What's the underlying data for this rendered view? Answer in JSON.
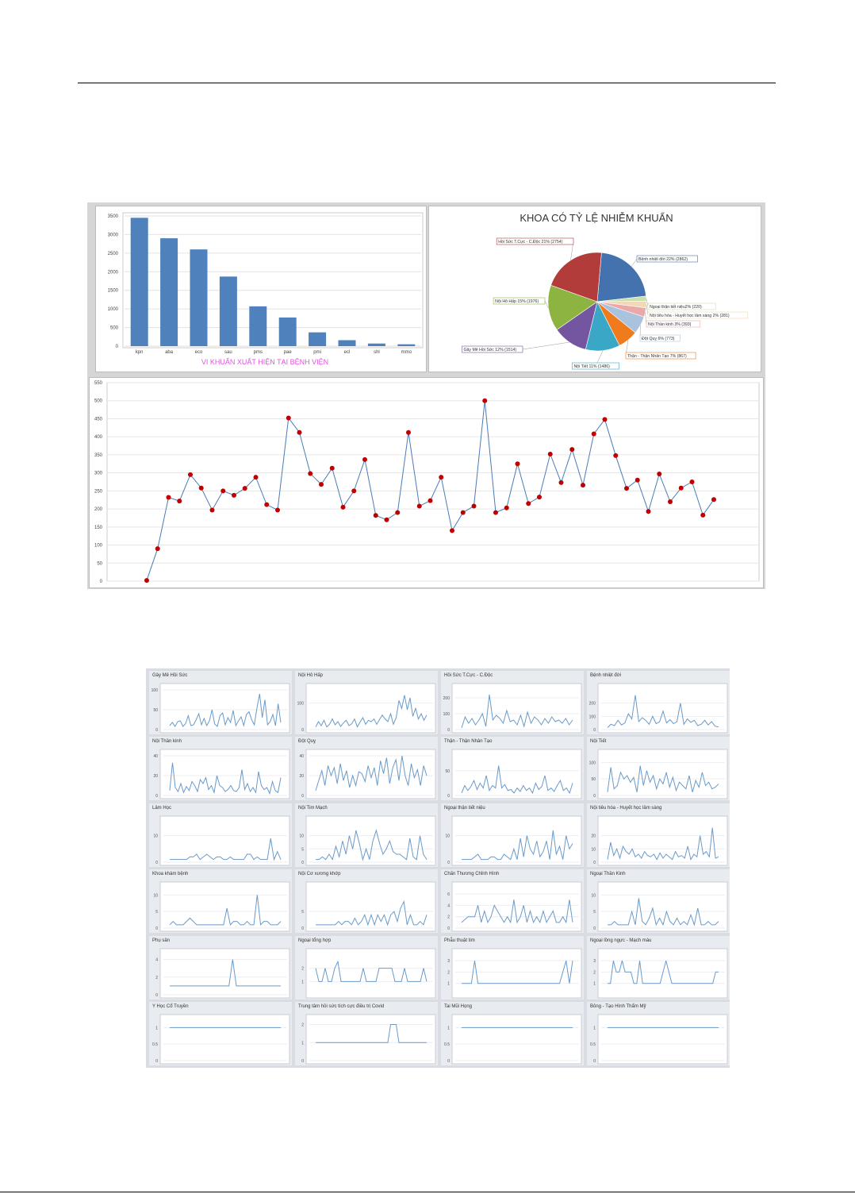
{
  "charts": [
    {
      "type": "bar",
      "categories": [
        "kpn",
        "aba",
        "eco",
        "sau",
        "pms",
        "pae",
        "pmi",
        "ecl",
        "shl",
        "mmo"
      ],
      "values": [
        3450,
        2900,
        2600,
        1870,
        1070,
        770,
        370,
        160,
        70,
        50
      ],
      "xlabel": "VI KHUẨN XUẤT HIỆN TẠI BỆNH VIỆN",
      "ylim": [
        0,
        3500
      ],
      "yticks": [
        0,
        500,
        1000,
        1500,
        2000,
        2500,
        3000,
        3500
      ],
      "grid": true,
      "colors": {
        "bar": "#4f81bd",
        "xlabel": "#dd55dd"
      }
    },
    {
      "type": "pie",
      "title": "KHOA CÓ TỶ LỆ NHIỄM KHUẨN",
      "slices": [
        {
          "label": "Bệnh nhiệt đới 22% (2862)",
          "value": 2862,
          "color": "#4472ae"
        },
        {
          "label": "Ngoại thận tiết niệu2% (220)",
          "value": 220,
          "color": "#c8e0b0"
        },
        {
          "label": "Nội tiêu hóa - Huyết học lâm sàng 2% (281)",
          "value": 281,
          "color": "#f0d8b8"
        },
        {
          "label": "Nội Thần kinh 3% (393)",
          "value": 393,
          "color": "#eaa8a8"
        },
        {
          "label": "Đột Quỵ 6% (773)",
          "value": 773,
          "color": "#a9c3de"
        },
        {
          "label": "Thận - Thận Nhân Tạo 7% (867)",
          "value": 867,
          "color": "#f07b1c"
        },
        {
          "label": "Nội Tiết 11% (1486)",
          "value": 1486,
          "color": "#3ba7c7"
        },
        {
          "label": "Gây Mê Hồi Sức 12% (1514)",
          "value": 1514,
          "color": "#7456a0"
        },
        {
          "label": "Nội Hô Hấp 15% (1976)",
          "value": 1976,
          "color": "#8db441"
        },
        {
          "label": "Hồi Sức T.Cực - C.Độc 21% (2754)",
          "value": 2754,
          "color": "#b13c3a"
        }
      ]
    },
    {
      "type": "line",
      "ylim": [
        0,
        550
      ],
      "yticks": [
        0,
        50,
        100,
        150,
        200,
        250,
        300,
        350,
        400,
        450,
        500,
        550
      ],
      "grid": true,
      "colors": {
        "line": "#4a7bb7",
        "marker": "#c00000"
      },
      "values": [
        2,
        90,
        232,
        222,
        295,
        258,
        197,
        250,
        238,
        257,
        288,
        212,
        197,
        452,
        412,
        298,
        268,
        313,
        205,
        250,
        337,
        182,
        170,
        190,
        412,
        208,
        223,
        288,
        140,
        190,
        208,
        500,
        190,
        203,
        325,
        215,
        233,
        352,
        273,
        365,
        266,
        408,
        448,
        348,
        257,
        280,
        193,
        297,
        220,
        258,
        275,
        183,
        226
      ]
    }
  ],
  "small_multiples": [
    {
      "title": "Gây Mê Hồi Sức",
      "ylim": [
        0,
        100
      ],
      "yticks": [
        0,
        50,
        100
      ],
      "values": [
        10,
        18,
        8,
        20,
        22,
        8,
        15,
        35,
        10,
        12,
        25,
        40,
        12,
        28,
        10,
        22,
        50,
        14,
        8,
        35,
        42,
        12,
        30,
        18,
        48,
        10,
        22,
        32,
        10,
        38,
        45,
        25,
        12,
        55,
        90,
        30,
        75,
        12,
        20,
        38,
        10,
        65,
        18
      ]
    },
    {
      "title": "Nội Hô Hấp",
      "ylim": [
        0,
        150
      ],
      "yticks": [
        0,
        100
      ],
      "values": [
        10,
        30,
        15,
        35,
        10,
        20,
        40,
        18,
        30,
        12,
        25,
        35,
        15,
        22,
        40,
        10,
        28,
        45,
        20,
        35,
        30,
        40,
        20,
        38,
        55,
        40,
        30,
        60,
        20,
        45,
        110,
        80,
        130,
        75,
        120,
        50,
        80,
        40,
        60,
        35,
        55
      ]
    },
    {
      "title": "Hồi Sức T.Cực - C.Độc",
      "ylim": [
        0,
        250
      ],
      "yticks": [
        0,
        100,
        200
      ],
      "values": [
        10,
        80,
        40,
        70,
        30,
        60,
        100,
        20,
        220,
        60,
        90,
        70,
        40,
        120,
        50,
        60,
        30,
        90,
        20,
        110,
        40,
        80,
        60,
        30,
        70,
        40,
        80,
        50,
        60,
        40,
        70,
        30,
        60
      ]
    },
    {
      "title": "Bệnh nhiệt đới",
      "ylim": [
        0,
        300
      ],
      "yticks": [
        0,
        100,
        200
      ],
      "values": [
        15,
        40,
        30,
        70,
        35,
        50,
        120,
        80,
        260,
        60,
        90,
        70,
        40,
        100,
        45,
        60,
        140,
        50,
        75,
        45,
        60,
        200,
        40,
        80,
        55,
        70,
        30,
        40,
        70,
        35,
        60,
        25,
        20
      ]
    },
    {
      "title": "Nội Thần kinh",
      "ylim": [
        0,
        40
      ],
      "yticks": [
        0,
        20,
        40
      ],
      "values": [
        5,
        33,
        8,
        4,
        12,
        3,
        9,
        5,
        14,
        10,
        4,
        16,
        12,
        18,
        6,
        10,
        3,
        20,
        10,
        8,
        4,
        6,
        10,
        5,
        4,
        8,
        26,
        6,
        12,
        4,
        8,
        3,
        24,
        10,
        6,
        8,
        2,
        14,
        5,
        3,
        18
      ]
    },
    {
      "title": "Đột Quỵ",
      "ylim": [
        0,
        40
      ],
      "yticks": [
        0,
        20,
        40
      ],
      "values": [
        5,
        15,
        25,
        10,
        30,
        20,
        28,
        12,
        32,
        15,
        25,
        8,
        20,
        10,
        24,
        22,
        14,
        30,
        18,
        28,
        10,
        35,
        22,
        38,
        12,
        28,
        36,
        15,
        40,
        20,
        10,
        32,
        18,
        26,
        10,
        30,
        20
      ]
    },
    {
      "title": "Thận - Thận Nhân Tạo",
      "ylim": [
        0,
        80
      ],
      "yticks": [
        0,
        50
      ],
      "values": [
        5,
        20,
        10,
        18,
        30,
        12,
        25,
        15,
        40,
        10,
        20,
        15,
        60,
        15,
        22,
        10,
        12,
        5,
        15,
        8,
        20,
        10,
        15,
        5,
        25,
        12,
        18,
        40,
        10,
        15,
        8,
        20,
        30,
        10,
        15,
        5,
        25
      ]
    },
    {
      "title": "Nội Tiết",
      "ylim": [
        0,
        120
      ],
      "yticks": [
        0,
        50,
        100
      ],
      "values": [
        10,
        85,
        20,
        30,
        70,
        50,
        60,
        40,
        55,
        10,
        90,
        30,
        75,
        40,
        60,
        20,
        50,
        35,
        70,
        25,
        55,
        15,
        40,
        30,
        20,
        60,
        10,
        45,
        25,
        70,
        30,
        40,
        20,
        25,
        35
      ]
    },
    {
      "title": "Lâm Học",
      "ylim": [
        0,
        15
      ],
      "yticks": [
        0,
        10
      ],
      "values": [
        1,
        1,
        1,
        1,
        1,
        1,
        2,
        2,
        3,
        1,
        2,
        3,
        2,
        1,
        2,
        2,
        1,
        1,
        2,
        1,
        1,
        1,
        1,
        3,
        3,
        1,
        2,
        1,
        1,
        1,
        9,
        1,
        4,
        1
      ]
    },
    {
      "title": "Nội Tim Mạch",
      "ylim": [
        0,
        15
      ],
      "yticks": [
        0,
        5,
        10
      ],
      "values": [
        1,
        1,
        2,
        1,
        3,
        1,
        6,
        2,
        8,
        3,
        10,
        5,
        12,
        7,
        1,
        5,
        1,
        8,
        12,
        7,
        3,
        5,
        8,
        4,
        3,
        3,
        2,
        1,
        9,
        2,
        1,
        10,
        3,
        1
      ]
    },
    {
      "title": "Ngoại thận tiết niệu",
      "ylim": [
        0,
        15
      ],
      "yticks": [
        0,
        10
      ],
      "values": [
        1,
        1,
        1,
        1,
        2,
        3,
        1,
        1,
        1,
        2,
        2,
        1,
        1,
        3,
        2,
        1,
        5,
        1,
        9,
        2,
        10,
        5,
        3,
        8,
        2,
        4,
        8,
        1,
        12,
        3,
        6,
        1,
        10,
        5,
        7
      ]
    },
    {
      "title": "Nội tiêu hóa - Huyết học lâm sàng",
      "ylim": [
        0,
        30
      ],
      "yticks": [
        0,
        10,
        20
      ],
      "values": [
        2,
        15,
        5,
        10,
        3,
        12,
        8,
        6,
        10,
        4,
        6,
        3,
        8,
        5,
        4,
        6,
        2,
        7,
        3,
        6,
        4,
        2,
        8,
        4,
        5,
        3,
        12,
        2,
        6,
        4,
        20,
        6,
        8,
        4,
        26,
        3,
        4
      ]
    },
    {
      "title": "Khoa khám bệnh",
      "ylim": [
        0,
        12
      ],
      "yticks": [
        0,
        5,
        10
      ],
      "values": [
        1,
        2,
        1,
        1,
        1,
        2,
        3,
        2,
        1,
        1,
        1,
        1,
        1,
        1,
        1,
        1,
        1,
        6,
        1,
        2,
        2,
        1,
        1,
        2,
        1,
        1,
        10,
        1,
        2,
        2,
        1,
        1,
        1,
        2
      ]
    },
    {
      "title": "Nội Cơ xương khớp",
      "ylim": [
        0,
        12
      ],
      "yticks": [
        0,
        5
      ],
      "values": [
        1,
        1,
        1,
        1,
        1,
        1,
        1,
        2,
        1,
        2,
        2,
        1,
        3,
        1,
        2,
        4,
        1,
        4,
        1,
        4,
        2,
        4,
        1,
        4,
        5,
        2,
        6,
        8,
        1,
        4,
        1,
        1,
        2,
        1,
        4
      ]
    },
    {
      "title": "Chấn Thương Chỉnh Hình",
      "ylim": [
        0,
        7
      ],
      "yticks": [
        0,
        2,
        4,
        6
      ],
      "values": [
        1,
        1.5,
        2,
        2,
        2,
        4,
        1,
        3,
        1,
        2,
        4,
        3,
        2,
        1,
        2,
        1,
        5,
        1,
        2,
        4,
        1,
        3,
        1,
        2,
        1,
        3,
        1,
        2,
        3,
        1,
        1,
        2,
        1,
        5,
        1
      ]
    },
    {
      "title": "Ngoại Thần Kinh",
      "ylim": [
        0,
        12
      ],
      "yticks": [
        0,
        5,
        10
      ],
      "values": [
        1,
        1,
        2,
        1,
        1,
        1,
        1,
        5,
        1,
        9,
        2,
        1,
        3,
        6,
        1,
        3,
        1,
        5,
        2,
        1,
        3,
        1,
        2,
        1,
        4,
        1,
        6,
        1,
        1,
        2,
        1,
        1,
        2
      ]
    },
    {
      "title": "Phụ sản",
      "ylim": [
        0,
        4.5
      ],
      "yticks": [
        0,
        2,
        4
      ],
      "values": [
        1,
        1,
        1,
        1,
        1,
        1,
        1,
        1,
        1,
        1,
        1,
        1,
        1,
        1,
        1,
        1,
        1,
        4,
        1,
        1,
        1,
        1,
        1,
        1,
        1,
        1,
        1,
        1,
        1,
        1,
        1
      ]
    },
    {
      "title": "Ngoại tổng hợp",
      "ylim": [
        0,
        3
      ],
      "yticks": [
        1,
        2
      ],
      "values": [
        2,
        1,
        1,
        2,
        1,
        1,
        2,
        2.5,
        1,
        1,
        1,
        1,
        1,
        1,
        1,
        2,
        1,
        1,
        1,
        1,
        2,
        2,
        2,
        2,
        2,
        1,
        1,
        1,
        2,
        1,
        1,
        1,
        1,
        1,
        2,
        1
      ]
    },
    {
      "title": "Phẫu thuật tim",
      "ylim": [
        0,
        3.5
      ],
      "yticks": [
        1,
        2,
        3
      ],
      "values": [
        1,
        1,
        1,
        1,
        3,
        1,
        1,
        1,
        1,
        1,
        1,
        1,
        1,
        1,
        1,
        1,
        1,
        1,
        1,
        1,
        1,
        1,
        1,
        1,
        1,
        1,
        1,
        1,
        1,
        1,
        1,
        2,
        3,
        1,
        3
      ]
    },
    {
      "title": "Ngoại lồng ngực - Mạch máu",
      "ylim": [
        0,
        3.5
      ],
      "yticks": [
        1,
        2,
        3
      ],
      "values": [
        1,
        1,
        3,
        2,
        2,
        3,
        2,
        2,
        2,
        1,
        1,
        3,
        1,
        1,
        1,
        1,
        1,
        1,
        1,
        2,
        3,
        2,
        1,
        1,
        1,
        1,
        1,
        1,
        1,
        1,
        1,
        1,
        1,
        1,
        1,
        1,
        1,
        2,
        2
      ]
    },
    {
      "title": "Y Học Cổ Truyền",
      "ylim": [
        0,
        1.2
      ],
      "yticks": [
        0,
        0.5,
        1
      ],
      "values": [
        1,
        1,
        1,
        1,
        1,
        1,
        1,
        1,
        1,
        1,
        1,
        1,
        1,
        1,
        1,
        1,
        1,
        1,
        1,
        1,
        1,
        1,
        1,
        1,
        1,
        1,
        1,
        1,
        1,
        1,
        1,
        1,
        1,
        1,
        1,
        1,
        1,
        1,
        1,
        1,
        1,
        1,
        1,
        1,
        1
      ]
    },
    {
      "title": "Trung tâm hồi sức tích cực điều trị Covid",
      "ylim": [
        0,
        2.2
      ],
      "yticks": [
        0,
        1,
        2
      ],
      "values": [
        1,
        1,
        1,
        1,
        1,
        1,
        1,
        1,
        1,
        1,
        1,
        1,
        1,
        1,
        1,
        1,
        1,
        1,
        1,
        1,
        1,
        1,
        1,
        1,
        1,
        1,
        1,
        2,
        2,
        2,
        1,
        1,
        1,
        1,
        1,
        1,
        1,
        1,
        1,
        1,
        1
      ]
    },
    {
      "title": "Tai Mũi Họng",
      "ylim": [
        0,
        1.2
      ],
      "yticks": [
        0,
        0.5,
        1
      ],
      "values": [
        1,
        1,
        1,
        1,
        1,
        1,
        1,
        1,
        1,
        1,
        1,
        1,
        1,
        1,
        1,
        1,
        1,
        1,
        1,
        1,
        1,
        1,
        1,
        1,
        1,
        1,
        1,
        1,
        1,
        1,
        1,
        1,
        1,
        1,
        1,
        1,
        1,
        1,
        1,
        1,
        1,
        1,
        1
      ]
    },
    {
      "title": "Bỏng - Tạo Hình Thẩm Mỹ",
      "ylim": [
        0,
        1.2
      ],
      "yticks": [
        0,
        0.5,
        1
      ],
      "values": [
        1,
        1,
        1,
        1,
        1,
        1,
        1,
        1,
        1,
        1,
        1,
        1,
        1,
        1,
        1,
        1,
        1,
        1,
        1,
        1,
        1,
        1,
        1,
        1,
        1,
        1,
        1,
        1,
        1,
        1,
        1,
        1,
        1,
        1,
        1,
        1,
        1,
        1,
        1,
        1,
        1,
        1,
        1
      ]
    }
  ]
}
